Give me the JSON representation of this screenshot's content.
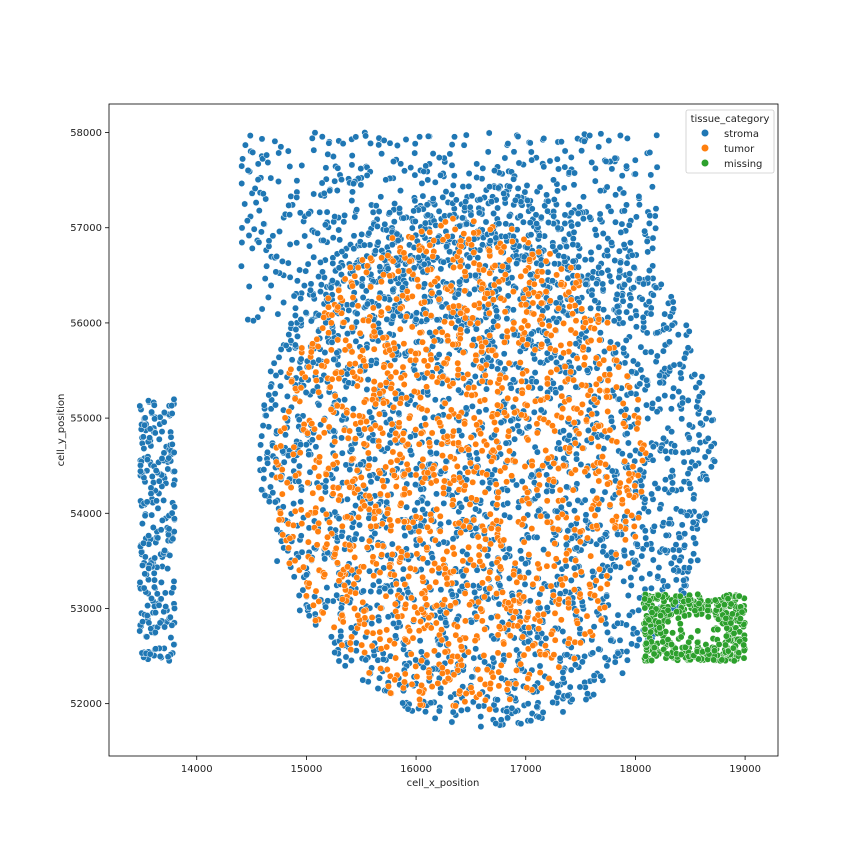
{
  "chart_data": {
    "type": "scatter",
    "title": "",
    "xlabel": "cell_x_position",
    "ylabel": "cell_y_position",
    "xlim": [
      13200,
      19300
    ],
    "ylim": [
      51450,
      58300
    ],
    "xticks": [
      14000,
      15000,
      16000,
      17000,
      18000,
      19000
    ],
    "yticks": [
      52000,
      53000,
      54000,
      55000,
      56000,
      57000,
      58000
    ],
    "grid": false,
    "legend": {
      "title": "tissue_category",
      "placement": "top-right"
    },
    "series": [
      {
        "name": "stroma",
        "color": "#1f77b4",
        "regions": [
          {
            "shape": "ellipse",
            "center": [
              16650,
              54600
            ],
            "radii": [
              2080,
              2850
            ],
            "note_fill": "dense"
          },
          {
            "shape": "rect",
            "x": [
              14400,
              18200
            ],
            "y": [
              56000,
              58000
            ]
          },
          {
            "shape": "rect",
            "x": [
              13480,
              13800
            ],
            "y": [
              52450,
              55200
            ]
          }
        ]
      },
      {
        "name": "tumor",
        "color": "#ff7f0e",
        "regions": [
          {
            "shape": "ellipse",
            "center": [
              16400,
              54500
            ],
            "radii": [
              1700,
              2600
            ]
          }
        ]
      },
      {
        "name": "missing",
        "color": "#2ca02c",
        "regions": [
          {
            "shape": "rect",
            "x": [
              18070,
              19000
            ],
            "y": [
              52450,
              53150
            ]
          }
        ]
      }
    ]
  }
}
